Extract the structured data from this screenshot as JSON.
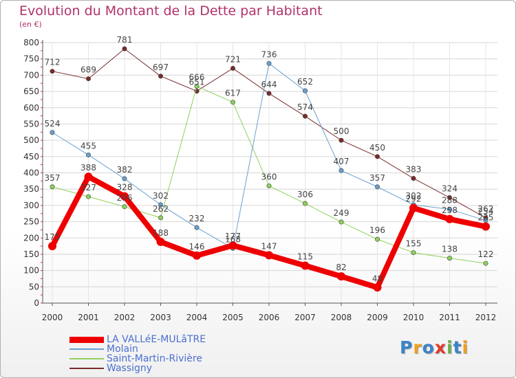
{
  "title": "Evolution du Montant de la Dette par Habitant",
  "subtitle": "(en €)",
  "logo": {
    "text": "Proxiti",
    "colors": [
      "#3a84c9",
      "#f0a020",
      "#3a84c9",
      "#e23a2a",
      "#6ab04c",
      "#3a84c9",
      "#f0a020"
    ]
  },
  "chart_data": {
    "type": "line",
    "categories": [
      "2000",
      "2001",
      "2002",
      "2003",
      "2004",
      "2005",
      "2006",
      "2007",
      "2008",
      "2009",
      "2010",
      "2011",
      "2012"
    ],
    "ylim": [
      0,
      800
    ],
    "yticks": [
      0,
      50,
      100,
      150,
      200,
      250,
      300,
      350,
      400,
      450,
      500,
      550,
      600,
      650,
      700,
      750,
      800
    ],
    "grid": true,
    "legend_position": "bottom-left",
    "series": [
      {
        "name": "Wassigny",
        "color": "#7a2a2a",
        "width": 1,
        "values": [
          712,
          689,
          781,
          697,
          651,
          721,
          644,
          574,
          500,
          450,
          383,
          324,
          262
        ]
      },
      {
        "name": "Saint-Martin-Rivière",
        "color": "#8ed05a",
        "width": 1,
        "values": [
          357,
          327,
          296,
          262,
          666,
          617,
          360,
          306,
          249,
          196,
          155,
          138,
          122
        ]
      },
      {
        "name": "Molain",
        "color": "#6a9fd0",
        "width": 1,
        "values": [
          524,
          455,
          382,
          302,
          232,
          168,
          736,
          652,
          407,
          357,
          302,
          288,
          254
        ]
      },
      {
        "name": "LA VALLéE-MULâTRE",
        "color": "#ee0000",
        "width": 8,
        "values": [
          175,
          388,
          328,
          188,
          146,
          177,
          147,
          115,
          82,
          48,
          292,
          258,
          235
        ]
      }
    ],
    "legend_order": [
      "LA VALLéE-MULâTRE",
      "Molain",
      "Saint-Martin-Rivière",
      "Wassigny"
    ]
  }
}
